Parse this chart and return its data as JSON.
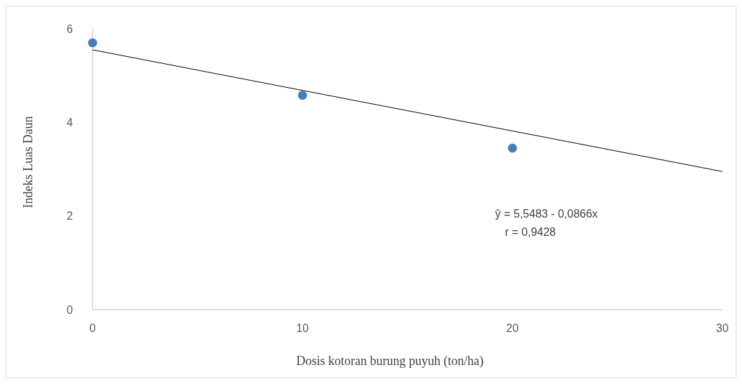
{
  "chart_data": {
    "type": "scatter",
    "xlabel": "Dosis kotoran burung puyuh (ton/ha)",
    "ylabel": "Indeks Luas Daun",
    "x": [
      0,
      10,
      20
    ],
    "series": [
      {
        "color": "#4a7ebb",
        "values": [
          5.7,
          4.58,
          3.45
        ],
        "marker": "circle"
      },
      {
        "type": "line",
        "color": "#000000",
        "x": [
          0,
          30
        ],
        "values": [
          5.55,
          2.95
        ]
      }
    ],
    "xlim": [
      0,
      30
    ],
    "xticks": [
      0,
      10,
      20,
      30
    ],
    "ylim": [
      0,
      6
    ],
    "yticks": [
      0,
      2,
      4,
      6
    ],
    "grid": false,
    "annotations": [
      "ŷ =  5,5483 - 0,0866x",
      "r = 0,9428"
    ]
  }
}
